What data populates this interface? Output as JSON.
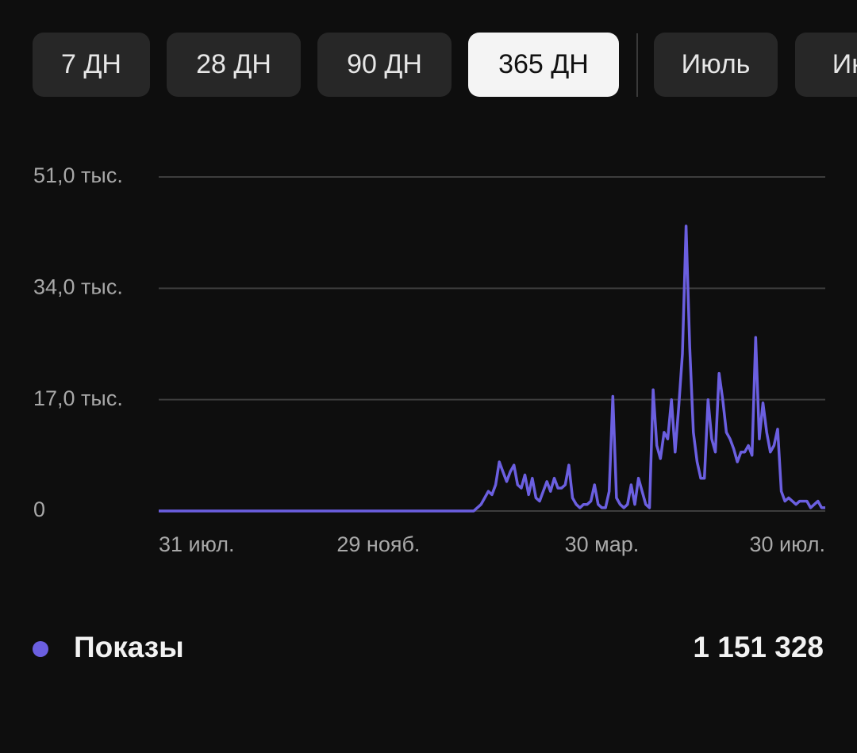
{
  "tabs": [
    "7 ДН",
    "28 ДН",
    "90 ДН",
    "365 ДН",
    "Июль",
    "Июнь"
  ],
  "active_tab": 3,
  "chart_data": {
    "type": "line",
    "categories": [
      "31 июл.",
      null,
      null,
      null,
      null,
      null,
      null,
      null,
      null,
      null,
      null,
      null,
      null,
      null,
      null,
      null,
      null,
      null,
      null,
      null,
      null,
      null,
      null,
      null,
      null,
      null,
      null,
      null,
      null,
      null,
      null,
      null,
      null,
      null,
      null,
      null,
      null,
      null,
      null,
      null,
      null,
      null,
      null,
      null,
      null,
      null,
      null,
      null,
      null,
      null,
      null,
      null,
      null,
      null,
      null,
      null,
      null,
      null,
      null,
      null,
      "29 нояб.",
      null,
      null,
      null,
      null,
      null,
      null,
      null,
      null,
      null,
      null,
      null,
      null,
      null,
      null,
      null,
      null,
      null,
      null,
      null,
      null,
      null,
      null,
      null,
      null,
      null,
      null,
      null,
      null,
      null,
      null,
      null,
      null,
      null,
      null,
      null,
      null,
      null,
      null,
      null,
      null,
      null,
      null,
      null,
      null,
      null,
      null,
      null,
      null,
      null,
      null,
      null,
      null,
      null,
      null,
      null,
      null,
      null,
      null,
      null,
      null,
      "30 мар.",
      null,
      null,
      null,
      null,
      null,
      null,
      null,
      null,
      null,
      null,
      null,
      null,
      null,
      null,
      null,
      null,
      null,
      null,
      null,
      null,
      null,
      null,
      null,
      null,
      null,
      null,
      null,
      null,
      null,
      null,
      null,
      null,
      null,
      null,
      null,
      null,
      null,
      null,
      null,
      null,
      null,
      null,
      null,
      null,
      null,
      null,
      null,
      null,
      null,
      null,
      null,
      null,
      null,
      null,
      null,
      null,
      null,
      null,
      null,
      null,
      "30 июл."
    ],
    "series": [
      {
        "name": "Показы",
        "color": "#6b5fe0",
        "total": "1 151 328",
        "values": [
          0,
          0,
          0,
          0,
          0,
          0,
          0,
          0,
          0,
          0,
          0,
          0,
          0,
          0,
          0,
          0,
          0,
          0,
          0,
          0,
          0,
          0,
          0,
          0,
          0,
          0,
          0,
          0,
          0,
          0,
          0,
          0,
          0,
          0,
          0,
          0,
          0,
          0,
          0,
          0,
          0,
          0,
          0,
          0,
          0,
          0,
          0,
          0,
          0,
          0,
          0,
          0,
          0,
          0,
          0,
          0,
          0,
          0,
          0,
          0,
          0,
          0,
          0,
          0,
          0,
          0,
          0,
          0,
          0,
          0,
          0,
          0,
          0,
          0,
          0,
          0,
          0,
          0,
          0,
          0,
          0,
          0,
          0,
          0,
          0,
          0,
          0,
          500,
          1000,
          2000,
          3000,
          2500,
          4000,
          7500,
          6000,
          4500,
          6000,
          7000,
          4000,
          3500,
          5500,
          2500,
          5000,
          2000,
          1500,
          3000,
          4500,
          3000,
          5000,
          3500,
          3500,
          4000,
          7000,
          2000,
          1000,
          500,
          1000,
          1000,
          1500,
          4000,
          1000,
          500,
          500,
          3000,
          17500,
          2000,
          1000,
          500,
          1000,
          4000,
          1000,
          5000,
          3000,
          1000,
          500,
          18500,
          10000,
          8000,
          12000,
          11000,
          17000,
          9000,
          16000,
          24000,
          43500,
          25000,
          12000,
          7500,
          5000,
          5000,
          17000,
          11000,
          9000,
          21000,
          17000,
          12000,
          11000,
          9500,
          7500,
          9000,
          9000,
          10000,
          8500,
          26500,
          11000,
          16500,
          12000,
          9000,
          10000,
          12500,
          3000,
          1500,
          2000,
          1500,
          1000,
          1500,
          1500,
          1500,
          500,
          1000,
          1500,
          500,
          500
        ]
      }
    ],
    "ylim": [
      0,
      51000
    ],
    "yticks": [
      0,
      {
        "value": 17000,
        "label": "17,0 тыс."
      },
      {
        "value": 34000,
        "label": "34,0 тыс."
      },
      {
        "value": 51000,
        "label": "51,0 тыс."
      }
    ],
    "grid": true
  }
}
